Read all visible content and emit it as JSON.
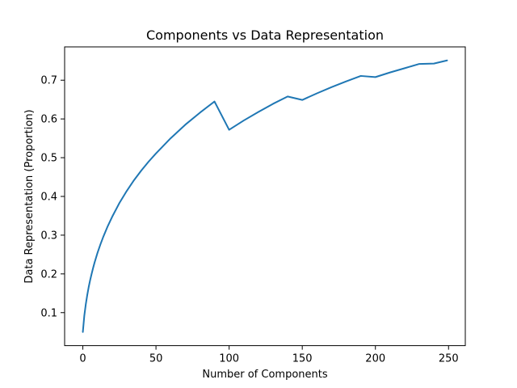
{
  "chart_data": {
    "type": "line",
    "title": "Components vs Data Representation",
    "xlabel": "Number of Components",
    "ylabel": "Data Representation (Proportion)",
    "xlim": [
      -12.45,
      261.45
    ],
    "ylim": [
      0.0148,
      0.786
    ],
    "xticks": [
      0,
      50,
      100,
      150,
      200,
      250
    ],
    "yticks": [
      0.1,
      0.2,
      0.3,
      0.4,
      0.5,
      0.6,
      0.7
    ],
    "xtick_labels": [
      "0",
      "50",
      "100",
      "150",
      "200",
      "250"
    ],
    "ytick_labels": [
      "0.1",
      "0.2",
      "0.3",
      "0.4",
      "0.5",
      "0.6",
      "0.7"
    ],
    "grid": false,
    "legend": "none",
    "series": [
      {
        "color": "#1f77b4",
        "x": [
          0,
          1,
          2,
          3,
          4,
          5,
          6,
          7,
          8,
          10,
          12,
          14,
          17,
          20,
          25,
          30,
          35,
          40,
          45,
          50,
          60,
          70,
          80,
          90,
          100,
          110,
          120,
          130,
          140,
          150,
          160,
          170,
          180,
          190,
          200,
          210,
          220,
          230,
          240,
          249
        ],
        "y": [
          0.05,
          0.092,
          0.121,
          0.145,
          0.166,
          0.184,
          0.2,
          0.215,
          0.229,
          0.254,
          0.276,
          0.296,
          0.323,
          0.347,
          0.383,
          0.414,
          0.442,
          0.467,
          0.49,
          0.511,
          0.55,
          0.585,
          0.616,
          0.645,
          0.572,
          0.596,
          0.618,
          0.639,
          0.658,
          0.649,
          0.666,
          0.682,
          0.697,
          0.711,
          0.708,
          0.72,
          0.731,
          0.742,
          0.743,
          0.751
        ]
      }
    ]
  }
}
